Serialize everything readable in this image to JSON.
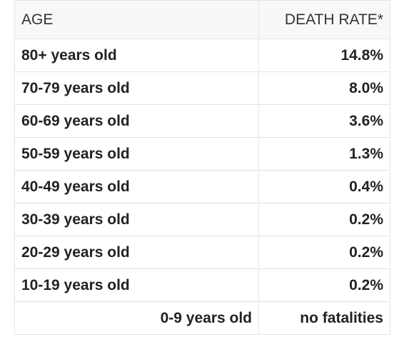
{
  "table": {
    "headers": [
      "AGE",
      "DEATH RATE*"
    ],
    "rows": [
      [
        "80+ years old",
        "14.8%"
      ],
      [
        "70-79 years old",
        "8.0%"
      ],
      [
        "60-69 years old",
        "3.6%"
      ],
      [
        "50-59 years old",
        "1.3%"
      ],
      [
        "40-49 years old",
        "0.4%"
      ],
      [
        "30-39 years old",
        "0.2%"
      ],
      [
        "20-29 years old",
        "0.2%"
      ],
      [
        "10-19 years old",
        "0.2%"
      ],
      [
        "0-9 years old",
        "no fatalities"
      ]
    ]
  }
}
